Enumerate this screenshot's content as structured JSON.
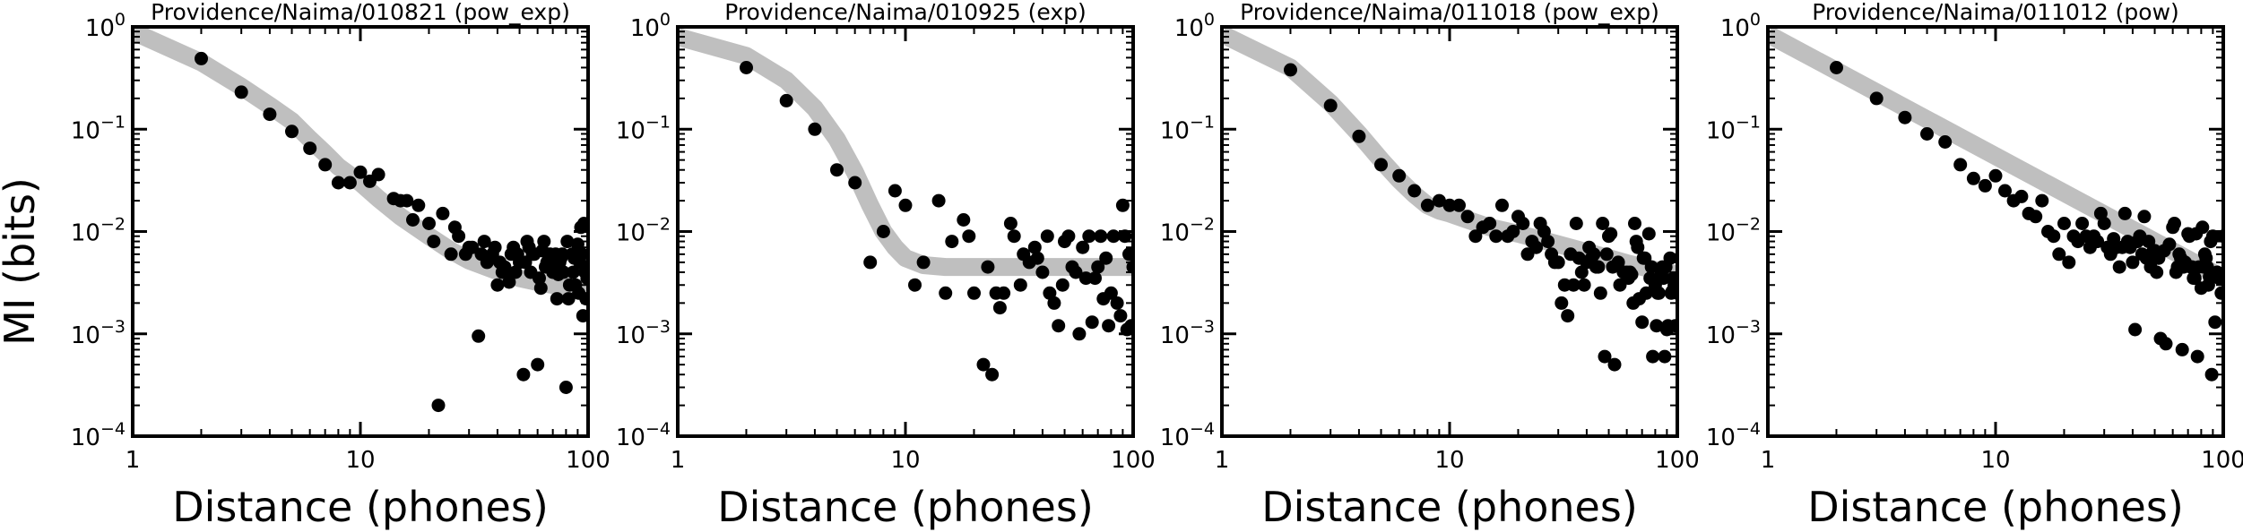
{
  "figure": {
    "ylabel": "MI (bits)",
    "xlabel": "Distance (phones)"
  },
  "chart_data": [
    {
      "type": "scatter",
      "title": "Providence/Naima/010821 (pow_exp)",
      "xlabel": "Distance (phones)",
      "ylabel": "MI (bits)",
      "xscale": "log",
      "yscale": "log",
      "xlim": [
        1,
        100
      ],
      "ylim": [
        0.0001,
        1
      ],
      "xticks": [
        "1",
        "10",
        "100"
      ],
      "yticks": [
        "10^-4",
        "10^-3",
        "10^-2",
        "10^-1",
        "10^0"
      ],
      "grid": false,
      "colors": {
        "points": "#000000",
        "fit": "#bfbfbf"
      },
      "points": {
        "x": [
          2,
          3,
          4,
          5,
          6,
          7,
          8,
          9,
          10,
          11,
          12,
          14,
          15,
          16,
          17,
          18,
          20,
          21,
          22,
          23,
          25,
          26,
          27,
          29,
          30,
          31,
          33,
          34,
          35,
          36,
          38,
          39,
          40,
          41,
          42,
          43,
          44,
          45,
          46,
          47,
          48,
          49,
          50,
          52,
          53,
          54,
          55,
          56,
          57,
          58,
          60,
          61,
          62,
          63,
          64,
          65,
          66,
          67,
          68,
          70,
          71,
          72,
          73,
          74,
          75,
          76,
          77,
          78,
          80,
          81,
          82,
          83,
          85,
          86,
          87,
          88,
          89,
          90,
          91,
          92,
          93,
          94,
          95,
          96,
          97,
          98,
          99,
          100
        ],
        "y": [
          0.49,
          0.23,
          0.14,
          0.095,
          0.065,
          0.045,
          0.03,
          0.03,
          0.038,
          0.031,
          0.036,
          0.021,
          0.02,
          0.02,
          0.013,
          0.018,
          0.012,
          0.008,
          0.0002,
          0.015,
          0.006,
          0.011,
          0.009,
          0.006,
          0.007,
          0.007,
          0.00095,
          0.006,
          0.008,
          0.005,
          0.006,
          0.007,
          0.003,
          0.005,
          0.004,
          0.0045,
          0.004,
          0.0032,
          0.006,
          0.007,
          0.004,
          0.006,
          0.005,
          0.0004,
          0.005,
          0.008,
          0.007,
          0.004,
          0.006,
          0.006,
          0.0005,
          0.0035,
          0.0028,
          0.0065,
          0.008,
          0.0045,
          0.005,
          0.0052,
          0.006,
          0.004,
          0.005,
          0.006,
          0.0022,
          0.0038,
          0.005,
          0.0055,
          0.006,
          0.004,
          0.0003,
          0.008,
          0.0022,
          0.003,
          0.006,
          0.004,
          0.0055,
          0.003,
          0.006,
          0.0075,
          0.0025,
          0.005,
          0.011,
          0.006,
          0.0015,
          0.012,
          0.004,
          0.0022,
          0.0035,
          0.0045
        ]
      },
      "fit": {
        "model": "pow_exp",
        "x": [
          1,
          2,
          3,
          4,
          5,
          6,
          7,
          8,
          10,
          12,
          15,
          20,
          25,
          30,
          40,
          50,
          60,
          70,
          80,
          90,
          100
        ],
        "y": [
          0.9,
          0.45,
          0.26,
          0.17,
          0.12,
          0.08,
          0.058,
          0.043,
          0.03,
          0.021,
          0.014,
          0.009,
          0.0065,
          0.0052,
          0.0041,
          0.0035,
          0.0032,
          0.003,
          0.0029,
          0.0028,
          0.0028
        ]
      }
    },
    {
      "type": "scatter",
      "title": "Providence/Naima/010925 (exp)",
      "xlabel": "Distance (phones)",
      "ylabel": "MI (bits)",
      "xscale": "log",
      "yscale": "log",
      "xlim": [
        1,
        100
      ],
      "ylim": [
        0.0001,
        1
      ],
      "xticks": [
        "1",
        "10",
        "100"
      ],
      "yticks": [
        "10^-4",
        "10^-3",
        "10^-2",
        "10^-1",
        "10^0"
      ],
      "grid": false,
      "colors": {
        "points": "#000000",
        "fit": "#bfbfbf"
      },
      "points": {
        "x": [
          2,
          3,
          4,
          5,
          6,
          7,
          8,
          9,
          10,
          11,
          12,
          14,
          15,
          16,
          18,
          19,
          20,
          22,
          23,
          24,
          25,
          26,
          27,
          29,
          30,
          32,
          33,
          35,
          37,
          38,
          40,
          42,
          43,
          45,
          47,
          49,
          50,
          52,
          54,
          56,
          58,
          60,
          62,
          64,
          66,
          68,
          70,
          72,
          74,
          76,
          78,
          80,
          82,
          85,
          88,
          90,
          92,
          94,
          96,
          98,
          100
        ],
        "y": [
          0.4,
          0.19,
          0.1,
          0.04,
          0.03,
          0.005,
          0.01,
          0.025,
          0.018,
          0.003,
          0.005,
          0.02,
          0.0025,
          0.008,
          0.013,
          0.009,
          0.0025,
          0.0005,
          0.0045,
          0.0004,
          0.0025,
          0.0018,
          0.0025,
          0.012,
          0.009,
          0.003,
          0.006,
          0.005,
          0.007,
          0.0055,
          0.004,
          0.009,
          0.0025,
          0.002,
          0.0012,
          0.003,
          0.008,
          0.009,
          0.0045,
          0.004,
          0.001,
          0.007,
          0.0035,
          0.009,
          0.0013,
          0.0035,
          0.0045,
          0.009,
          0.0022,
          0.0055,
          0.0012,
          0.0025,
          0.009,
          0.002,
          0.0015,
          0.018,
          0.009,
          0.0011,
          0.006,
          0.0012,
          0.0045
        ]
      },
      "fit": {
        "model": "exp",
        "x": [
          1,
          2,
          3,
          4,
          5,
          6,
          7,
          8,
          9,
          10,
          12,
          15,
          20,
          30,
          50,
          70,
          100
        ],
        "y": [
          0.8,
          0.52,
          0.3,
          0.16,
          0.08,
          0.038,
          0.018,
          0.01,
          0.007,
          0.0055,
          0.0047,
          0.0045,
          0.0045,
          0.0045,
          0.0045,
          0.0045,
          0.0045
        ]
      }
    },
    {
      "type": "scatter",
      "title": "Providence/Naima/011018 (pow_exp)",
      "xlabel": "Distance (phones)",
      "ylabel": "MI (bits)",
      "xscale": "log",
      "yscale": "log",
      "xlim": [
        1,
        100
      ],
      "ylim": [
        0.0001,
        1
      ],
      "xticks": [
        "1",
        "10",
        "100"
      ],
      "yticks": [
        "10^-4",
        "10^-3",
        "10^-2",
        "10^-1",
        "10^0"
      ],
      "grid": false,
      "colors": {
        "points": "#000000",
        "fit": "#bfbfbf"
      },
      "points": {
        "x": [
          2,
          3,
          4,
          5,
          6,
          7,
          8,
          9,
          10,
          11,
          12,
          13,
          14,
          15,
          16,
          17,
          18,
          19,
          20,
          21,
          22,
          23,
          24,
          25,
          26,
          27,
          28,
          29,
          30,
          31,
          32,
          33,
          34,
          35,
          36,
          37,
          38,
          39,
          40,
          41,
          42,
          43,
          44,
          45,
          46,
          47,
          48,
          49,
          50,
          51,
          52,
          53,
          55,
          56,
          58,
          60,
          61,
          62,
          63,
          64,
          65,
          66,
          67,
          68,
          70,
          71,
          72,
          73,
          75,
          76,
          77,
          78,
          80,
          81,
          82,
          83,
          85,
          86,
          87,
          88,
          89,
          90,
          91,
          93,
          94,
          95,
          96,
          97,
          98,
          100
        ],
        "y": [
          0.38,
          0.17,
          0.085,
          0.045,
          0.035,
          0.025,
          0.018,
          0.02,
          0.018,
          0.018,
          0.014,
          0.009,
          0.011,
          0.012,
          0.009,
          0.018,
          0.009,
          0.01,
          0.014,
          0.012,
          0.006,
          0.008,
          0.007,
          0.012,
          0.01,
          0.008,
          0.006,
          0.005,
          0.005,
          0.002,
          0.003,
          0.0015,
          0.006,
          0.003,
          0.012,
          0.0055,
          0.004,
          0.003,
          0.005,
          0.007,
          0.0055,
          0.006,
          0.0045,
          0.0045,
          0.0025,
          0.012,
          0.0006,
          0.006,
          0.009,
          0.0095,
          0.0045,
          0.0005,
          0.005,
          0.003,
          0.004,
          0.004,
          0.0035,
          0.004,
          0.0038,
          0.002,
          0.012,
          0.008,
          0.007,
          0.0022,
          0.0013,
          0.0055,
          0.0055,
          0.0025,
          0.0095,
          0.0035,
          0.0045,
          0.0006,
          0.003,
          0.0012,
          0.0025,
          0.0025,
          0.0038,
          0.0045,
          0.0035,
          0.0006,
          0.0045,
          0.0011,
          0.0012,
          0.0055,
          0.0025,
          0.0026,
          0.0035,
          0.003,
          0.0012,
          0.0025
        ]
      },
      "fit": {
        "model": "pow_exp",
        "x": [
          1,
          2,
          3,
          4,
          5,
          6,
          7,
          8,
          9,
          10,
          12,
          15,
          20,
          30,
          40,
          50,
          60,
          70,
          80,
          90,
          100
        ],
        "y": [
          0.85,
          0.4,
          0.18,
          0.09,
          0.05,
          0.032,
          0.023,
          0.018,
          0.016,
          0.015,
          0.013,
          0.011,
          0.0095,
          0.0075,
          0.0063,
          0.0055,
          0.0049,
          0.0045,
          0.0042,
          0.004,
          0.0038
        ]
      }
    },
    {
      "type": "scatter",
      "title": "Providence/Naima/011012 (pow)",
      "xlabel": "Distance (phones)",
      "ylabel": "MI (bits)",
      "xscale": "log",
      "yscale": "log",
      "xlim": [
        1,
        100
      ],
      "ylim": [
        0.0001,
        1
      ],
      "xticks": [
        "1",
        "10",
        "100"
      ],
      "yticks": [
        "10^-4",
        "10^-3",
        "10^-2",
        "10^-1",
        "10^0"
      ],
      "grid": false,
      "colors": {
        "points": "#000000",
        "fit": "#bfbfbf"
      },
      "points": {
        "x": [
          2,
          3,
          4,
          5,
          6,
          7,
          8,
          9,
          10,
          11,
          12,
          13,
          14,
          15,
          16,
          17,
          18,
          19,
          20,
          21,
          22,
          23,
          24,
          25,
          26,
          27,
          28,
          29,
          30,
          31,
          32,
          33,
          34,
          35,
          36,
          37,
          38,
          39,
          40,
          41,
          42,
          43,
          44,
          45,
          46,
          47,
          48,
          49,
          50,
          51,
          52,
          53,
          55,
          56,
          58,
          60,
          61,
          62,
          63,
          64,
          65,
          66,
          67,
          68,
          70,
          71,
          72,
          73,
          74,
          75,
          76,
          77,
          78,
          80,
          81,
          82,
          83,
          84,
          85,
          86,
          87,
          88,
          89,
          90,
          92,
          94,
          96,
          98,
          100
        ],
        "y": [
          0.4,
          0.2,
          0.13,
          0.09,
          0.075,
          0.045,
          0.033,
          0.028,
          0.035,
          0.025,
          0.02,
          0.022,
          0.015,
          0.014,
          0.02,
          0.01,
          0.009,
          0.006,
          0.012,
          0.005,
          0.009,
          0.008,
          0.012,
          0.009,
          0.007,
          0.009,
          0.008,
          0.015,
          0.012,
          0.007,
          0.006,
          0.0085,
          0.007,
          0.0045,
          0.007,
          0.015,
          0.008,
          0.007,
          0.005,
          0.0011,
          0.008,
          0.009,
          0.006,
          0.014,
          0.0055,
          0.008,
          0.0045,
          0.0063,
          0.0065,
          0.004,
          0.0055,
          0.0009,
          0.0065,
          0.0008,
          0.0075,
          0.011,
          0.012,
          0.004,
          0.0045,
          0.006,
          0.0055,
          0.0007,
          0.0045,
          0.005,
          0.0095,
          0.009,
          0.0045,
          0.0045,
          0.0035,
          0.0035,
          0.0095,
          0.0006,
          0.0045,
          0.0028,
          0.011,
          0.0045,
          0.006,
          0.0055,
          0.0045,
          0.003,
          0.0036,
          0.008,
          0.0004,
          0.009,
          0.0013,
          0.004,
          0.0035,
          0.0025,
          0.009
        ]
      },
      "fit": {
        "model": "pow",
        "x": [
          1,
          100
        ],
        "y": [
          0.85,
          0.0035
        ]
      }
    }
  ]
}
